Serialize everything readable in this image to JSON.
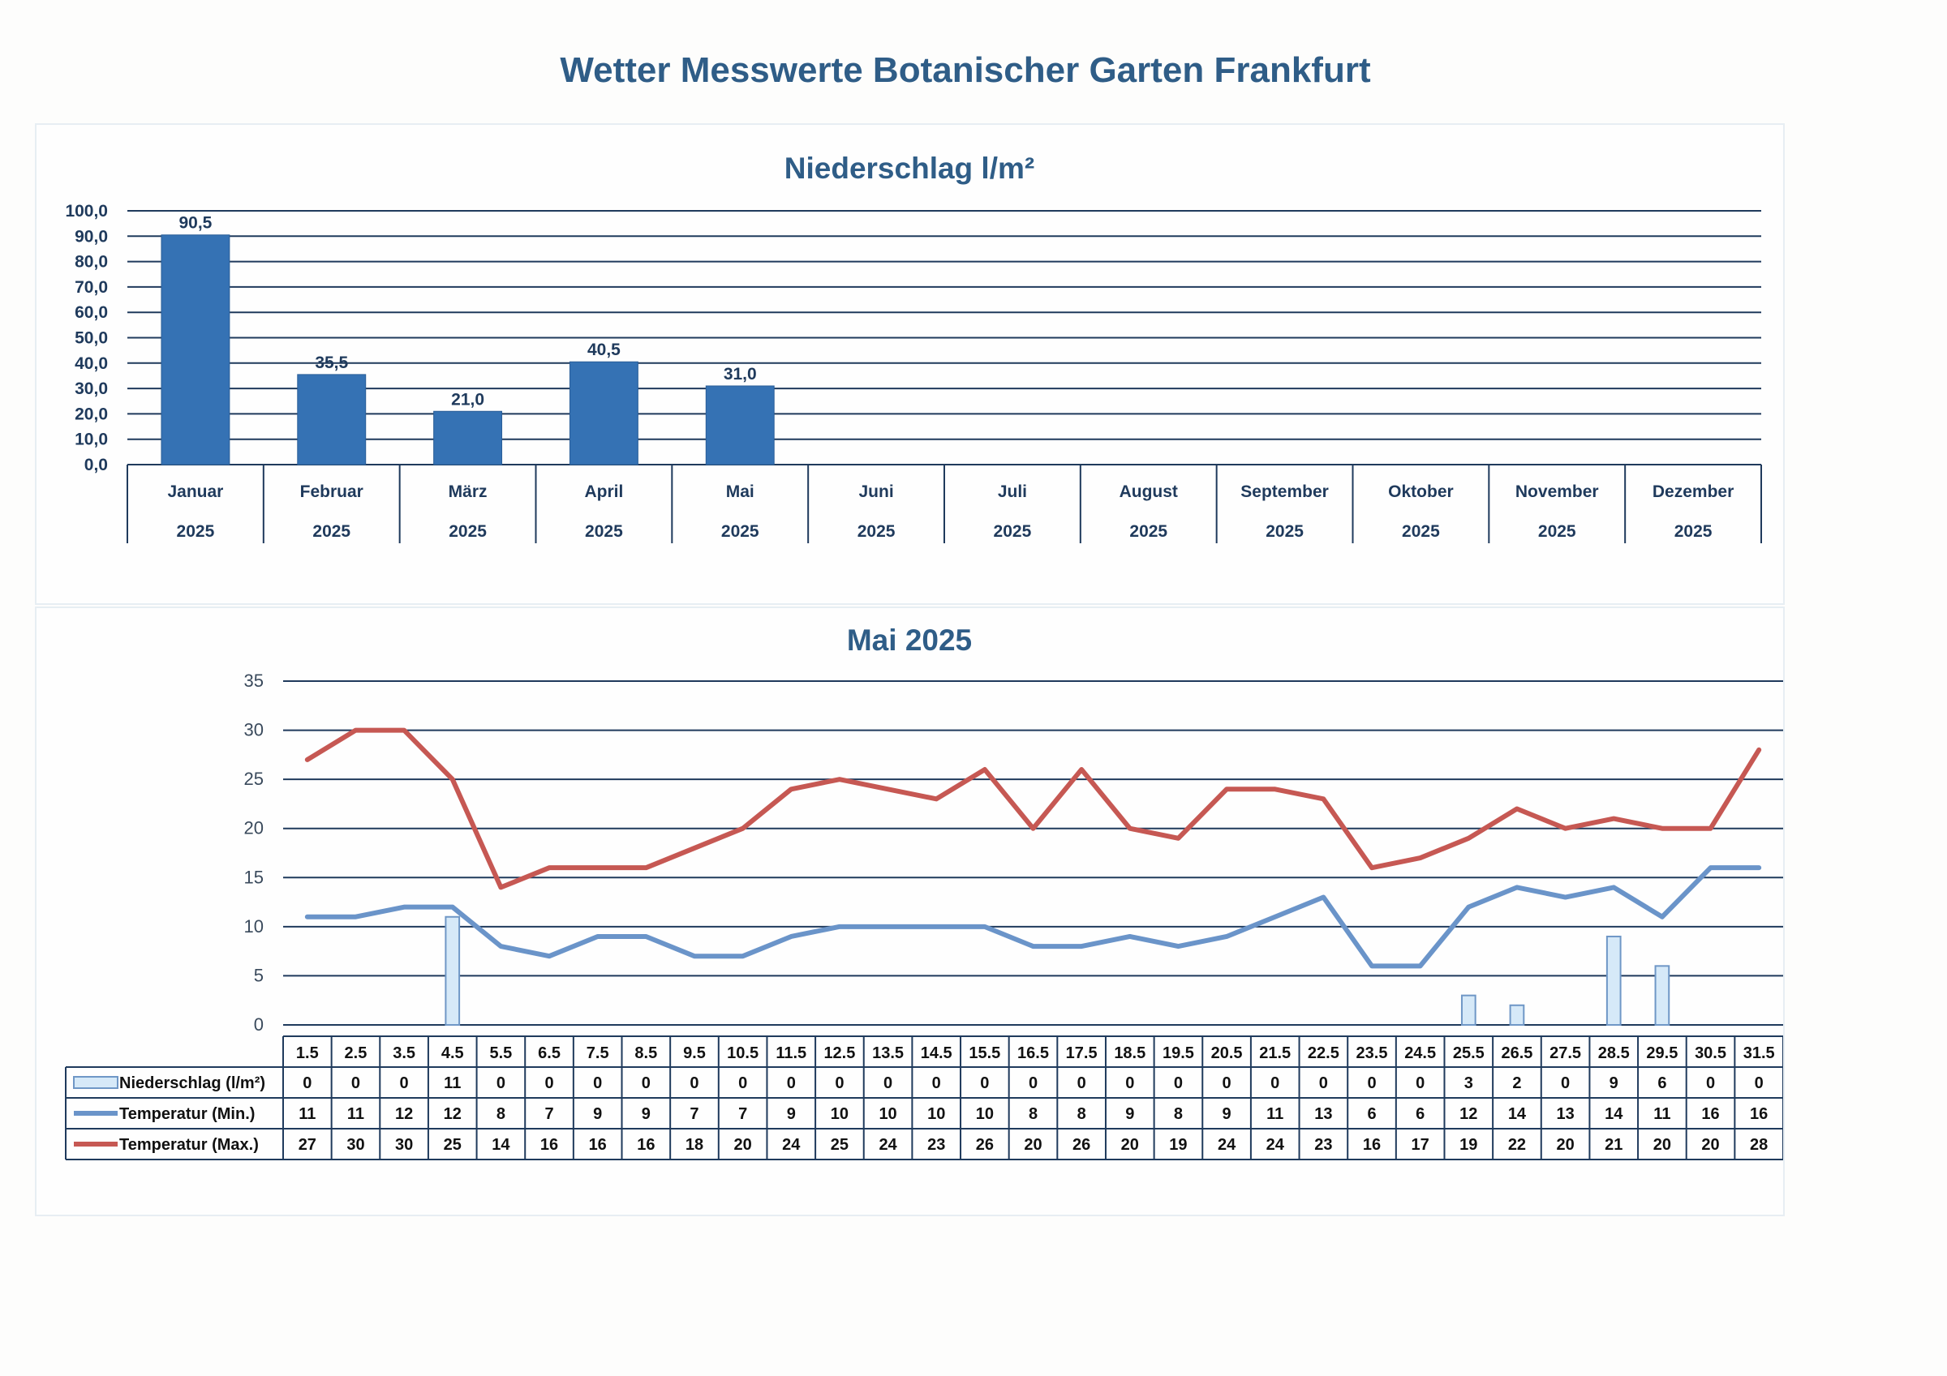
{
  "title": "Wetter Messwerte Botanischer Garten Frankfurt",
  "colors": {
    "title": "#2f5d87",
    "bar": "#3572b4",
    "gridline": "#1f3a5c",
    "precip_bar": "#d6e9f8",
    "precip_edge": "#6f97c6",
    "temp_min": "#6a94c9",
    "temp_max": "#c65853"
  },
  "chart_data": [
    {
      "type": "bar",
      "title": "Niederschlag l/m²",
      "categories": [
        "Januar",
        "Februar",
        "März",
        "April",
        "Mai",
        "Juni",
        "Juli",
        "August",
        "September",
        "Oktober",
        "November",
        "Dezember"
      ],
      "category_year": "2025",
      "values": [
        90.5,
        35.5,
        21.0,
        40.5,
        31.0,
        null,
        null,
        null,
        null,
        null,
        null,
        null
      ],
      "value_labels": [
        "90,5",
        "35,5",
        "21,0",
        "40,5",
        "31,0",
        "",
        "",
        "",
        "",
        "",
        "",
        ""
      ],
      "yticks": [
        "0,0",
        "10,0",
        "20,0",
        "30,0",
        "40,0",
        "50,0",
        "60,0",
        "70,0",
        "80,0",
        "90,0",
        "100,0"
      ],
      "ylim": [
        0,
        100
      ],
      "xlabel": "",
      "ylabel": "",
      "grid": true
    },
    {
      "type": "line",
      "title": "Mai 2025",
      "x": [
        "1.5",
        "2.5",
        "3.5",
        "4.5",
        "5.5",
        "6.5",
        "7.5",
        "8.5",
        "9.5",
        "10.5",
        "11.5",
        "12.5",
        "13.5",
        "14.5",
        "15.5",
        "16.5",
        "17.5",
        "18.5",
        "19.5",
        "20.5",
        "21.5",
        "22.5",
        "23.5",
        "24.5",
        "25.5",
        "26.5",
        "27.5",
        "28.5",
        "29.5",
        "30.5",
        "31.5"
      ],
      "series": [
        {
          "name": "Niederschlag (l/m²)",
          "kind": "bar",
          "values": [
            0,
            0,
            0,
            11,
            0,
            0,
            0,
            0,
            0,
            0,
            0,
            0,
            0,
            0,
            0,
            0,
            0,
            0,
            0,
            0,
            0,
            0,
            0,
            0,
            3,
            2,
            0,
            9,
            6,
            0,
            0
          ]
        },
        {
          "name": "Temperatur (Min.)",
          "kind": "line",
          "values": [
            11,
            11,
            12,
            12,
            8,
            7,
            9,
            9,
            7,
            7,
            9,
            10,
            10,
            10,
            10,
            8,
            8,
            9,
            8,
            9,
            11,
            13,
            6,
            6,
            12,
            14,
            13,
            14,
            11,
            16,
            16
          ]
        },
        {
          "name": "Temperatur (Max.)",
          "kind": "line",
          "values": [
            27,
            30,
            30,
            25,
            14,
            16,
            16,
            16,
            18,
            20,
            24,
            25,
            24,
            23,
            26,
            20,
            26,
            20,
            19,
            24,
            24,
            23,
            16,
            17,
            19,
            22,
            20,
            21,
            20,
            20,
            28
          ]
        }
      ],
      "yticks": [
        "0",
        "5",
        "10",
        "15",
        "20",
        "25",
        "30",
        "35"
      ],
      "ylim": [
        0,
        35
      ],
      "xlabel": "",
      "ylabel": "",
      "grid": true,
      "legend": "data-table-bottom"
    }
  ]
}
